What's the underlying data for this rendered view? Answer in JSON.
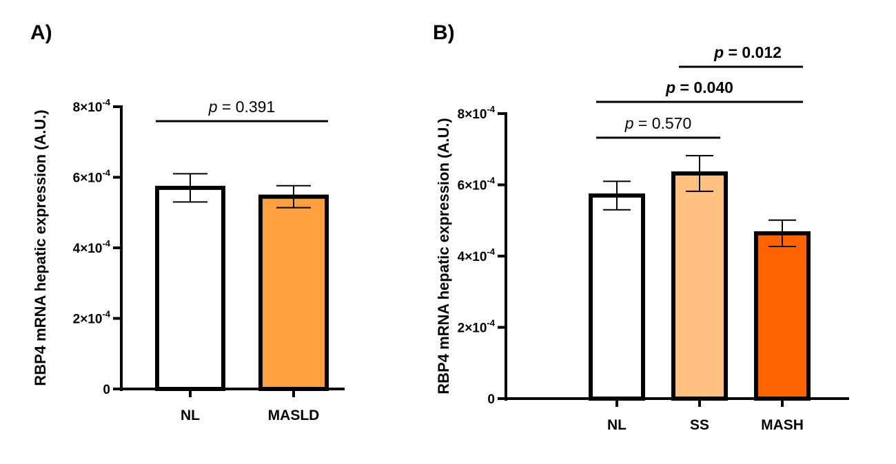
{
  "figure": {
    "panels": [
      "A)",
      "B)"
    ]
  },
  "chart_data": [
    {
      "type": "bar",
      "panel": "A)",
      "title": "",
      "xlabel": "",
      "ylabel": "RBP4 mRNA hepatic expression (A.U.)",
      "ylim": [
        0,
        0.0008
      ],
      "yticks": [
        {
          "value": 0,
          "label": "0",
          "exp": ""
        },
        {
          "value": 0.0002,
          "label": "2×10",
          "exp": "-4"
        },
        {
          "value": 0.0004,
          "label": "4×10",
          "exp": "-4"
        },
        {
          "value": 0.0006,
          "label": "6×10",
          "exp": "-4"
        },
        {
          "value": 0.0008,
          "label": "8×10",
          "exp": "-4"
        }
      ],
      "grid": false,
      "categories": [
        "NL",
        "MASLD"
      ],
      "values": [
        0.00057,
        0.000545
      ],
      "errors": [
        4e-05,
        3.1e-05
      ],
      "colors": [
        "#ffffff",
        "#ffa040"
      ],
      "comparisons": [
        {
          "from": 0,
          "to": 1,
          "label_p": "p",
          "label_rest": " = 0.391",
          "bold": false,
          "level": 1
        }
      ]
    },
    {
      "type": "bar",
      "panel": "B)",
      "title": "",
      "xlabel": "",
      "ylabel": "RBP4 mRNA hepatic expression (A.U.)",
      "ylim": [
        0,
        0.0008
      ],
      "yticks": [
        {
          "value": 0,
          "label": "0",
          "exp": ""
        },
        {
          "value": 0.0002,
          "label": "2×10",
          "exp": "-4"
        },
        {
          "value": 0.0004,
          "label": "4×10",
          "exp": "-4"
        },
        {
          "value": 0.0006,
          "label": "6×10",
          "exp": "-4"
        },
        {
          "value": 0.0008,
          "label": "8×10",
          "exp": "-4"
        }
      ],
      "grid": false,
      "categories": [
        "NL",
        "SS",
        "MASH"
      ],
      "values": [
        0.00057,
        0.000632,
        0.000464
      ],
      "errors": [
        4e-05,
        5e-05,
        3.7e-05
      ],
      "colors": [
        "#ffffff",
        "#ffc080",
        "#ff6300"
      ],
      "comparisons": [
        {
          "from": 0,
          "to": 1,
          "label_p": "p",
          "label_rest": " = 0.570",
          "bold": false,
          "level": 1
        },
        {
          "from": 0,
          "to": 2,
          "label_p": "p",
          "label_rest": " = 0.040",
          "bold": true,
          "level": 2
        },
        {
          "from": 1,
          "to": 2,
          "label_p": "p",
          "label_rest": " = 0.012",
          "bold": true,
          "level": 3
        }
      ]
    }
  ]
}
